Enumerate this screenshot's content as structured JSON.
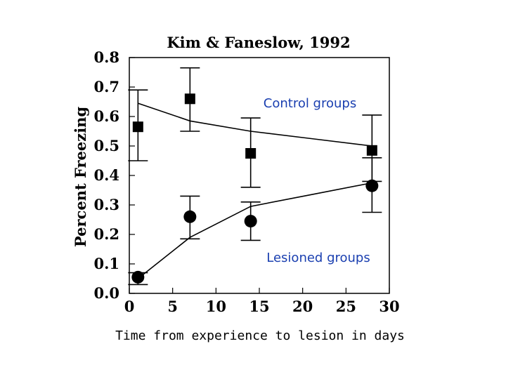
{
  "chart_data": {
    "type": "scatter",
    "title": "Kim & Faneslow, 1992",
    "ylabel": "Percent Freezing",
    "xlabel": "Time from experience to lesion in days",
    "xlim": [
      0,
      30
    ],
    "ylim": [
      0,
      0.8
    ],
    "xticks": [
      "0",
      "5",
      "10",
      "15",
      "20",
      "25",
      "30"
    ],
    "yticks": [
      "0.0",
      "0.1",
      "0.2",
      "0.3",
      "0.4",
      "0.5",
      "0.6",
      "0.7",
      "0.8"
    ],
    "grid": false,
    "series": [
      {
        "name": "Control groups",
        "marker": "square",
        "x": [
          1,
          7,
          14,
          28
        ],
        "y": [
          0.565,
          0.66,
          0.475,
          0.485
        ],
        "err_low": [
          0.45,
          0.55,
          0.36,
          0.38
        ],
        "err_high": [
          0.69,
          0.765,
          0.595,
          0.605
        ],
        "fit_x": [
          1,
          7,
          14,
          21,
          28
        ],
        "fit_y": [
          0.645,
          0.585,
          0.55,
          0.525,
          0.5
        ]
      },
      {
        "name": "Lesioned groups",
        "marker": "circle",
        "x": [
          1,
          7,
          14,
          28
        ],
        "y": [
          0.055,
          0.26,
          0.245,
          0.365
        ],
        "err_low": [
          0.03,
          0.185,
          0.18,
          0.275
        ],
        "err_high": [
          0.07,
          0.33,
          0.31,
          0.46
        ],
        "fit_x": [
          1,
          7,
          14,
          21,
          28
        ],
        "fit_y": [
          0.05,
          0.19,
          0.295,
          0.335,
          0.375
        ]
      }
    ]
  }
}
